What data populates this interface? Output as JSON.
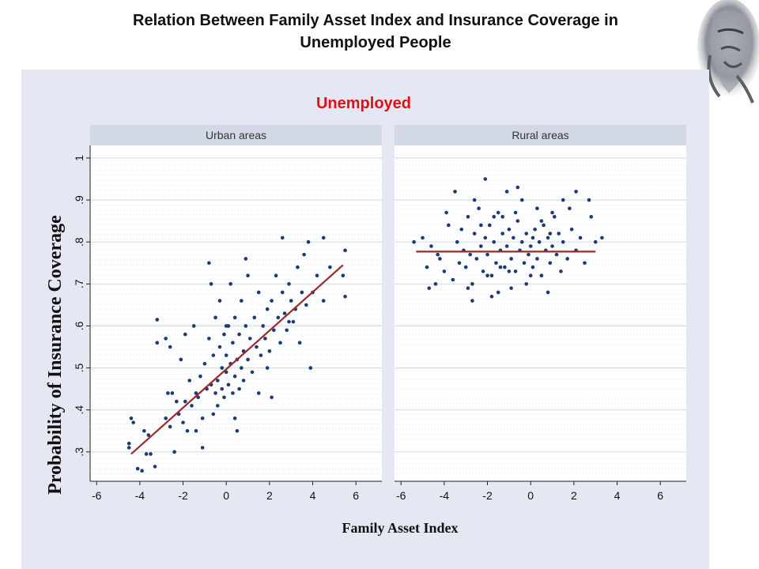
{
  "slide": {
    "title_line1": "Relation Between Family Asset Index and Insurance Coverage in",
    "title_line2": "Unemployed People"
  },
  "colors": {
    "background": "#ffffff",
    "panel_background": "#e5e8f2",
    "strip_background": "#d3d8e6",
    "plot_area": "#ffffff",
    "point": "#1f3a6e",
    "fit_line": "#9b2a2a",
    "chart_title": "#dd1111",
    "gridline": "#d6dbe8"
  },
  "icons": {
    "corner_art": "grayscale-face-illustration"
  },
  "chart_data": {
    "type": "scatter",
    "title": "Unemployed",
    "xlabel": "Family Asset Index",
    "ylabel": "Probability of Insurance Coverage",
    "xlim": [
      -6.3,
      7.2
    ],
    "ylim": [
      0.23,
      1.03
    ],
    "xticks": [
      "-6",
      "-4",
      "-2",
      "0",
      "2",
      "4",
      "6"
    ],
    "xtick_values": [
      -6,
      -4,
      -2,
      0,
      2,
      4,
      6
    ],
    "yticks": [
      ".3",
      ".4",
      ".5",
      ".6",
      ".7",
      ".8",
      ".9",
      "1"
    ],
    "ytick_values": [
      0.3,
      0.4,
      0.5,
      0.6,
      0.7,
      0.8,
      0.9,
      1.0
    ],
    "grid": true,
    "panels": [
      {
        "name": "Urban areas",
        "fit_line": {
          "x": [
            -4.4,
            5.4
          ],
          "y": [
            0.295,
            0.745
          ]
        },
        "points": [
          [
            -4.5,
            0.32
          ],
          [
            -4.5,
            0.31
          ],
          [
            -4.4,
            0.38
          ],
          [
            -4.3,
            0.37
          ],
          [
            -4.1,
            0.26
          ],
          [
            -3.9,
            0.255
          ],
          [
            -3.8,
            0.35
          ],
          [
            -3.7,
            0.295
          ],
          [
            -3.5,
            0.295
          ],
          [
            -3.3,
            0.265
          ],
          [
            -3.2,
            0.615
          ],
          [
            -3.2,
            0.56
          ],
          [
            -2.8,
            0.38
          ],
          [
            -2.7,
            0.44
          ],
          [
            -2.6,
            0.55
          ],
          [
            -2.6,
            0.36
          ],
          [
            -2.5,
            0.44
          ],
          [
            -2.4,
            0.3
          ],
          [
            -2.3,
            0.42
          ],
          [
            -2.2,
            0.39
          ],
          [
            -2.1,
            0.52
          ],
          [
            -2.0,
            0.37
          ],
          [
            -1.9,
            0.58
          ],
          [
            -1.8,
            0.35
          ],
          [
            -1.7,
            0.47
          ],
          [
            -1.6,
            0.41
          ],
          [
            -1.5,
            0.6
          ],
          [
            -1.4,
            0.44
          ],
          [
            -1.3,
            0.43
          ],
          [
            -1.2,
            0.48
          ],
          [
            -1.1,
            0.38
          ],
          [
            -1.1,
            0.31
          ],
          [
            -1.0,
            0.51
          ],
          [
            -0.9,
            0.45
          ],
          [
            -0.8,
            0.57
          ],
          [
            -0.8,
            0.75
          ],
          [
            -0.7,
            0.46
          ],
          [
            -0.6,
            0.39
          ],
          [
            -0.6,
            0.53
          ],
          [
            -0.5,
            0.44
          ],
          [
            -0.5,
            0.62
          ],
          [
            -0.4,
            0.47
          ],
          [
            -0.4,
            0.41
          ],
          [
            -0.3,
            0.55
          ],
          [
            -0.3,
            0.66
          ],
          [
            -0.2,
            0.45
          ],
          [
            -0.2,
            0.5
          ],
          [
            -0.1,
            0.58
          ],
          [
            -0.1,
            0.43
          ],
          [
            0.0,
            0.49
          ],
          [
            0.0,
            0.53
          ],
          [
            0.1,
            0.46
          ],
          [
            0.1,
            0.6
          ],
          [
            0.2,
            0.51
          ],
          [
            0.2,
            0.7
          ],
          [
            0.3,
            0.44
          ],
          [
            0.3,
            0.56
          ],
          [
            0.4,
            0.48
          ],
          [
            0.4,
            0.62
          ],
          [
            0.5,
            0.52
          ],
          [
            0.5,
            0.35
          ],
          [
            0.6,
            0.58
          ],
          [
            0.6,
            0.45
          ],
          [
            0.7,
            0.5
          ],
          [
            0.7,
            0.66
          ],
          [
            0.8,
            0.54
          ],
          [
            0.8,
            0.47
          ],
          [
            0.9,
            0.6
          ],
          [
            0.9,
            0.76
          ],
          [
            1.0,
            0.52
          ],
          [
            1.1,
            0.57
          ],
          [
            1.2,
            0.49
          ],
          [
            1.3,
            0.62
          ],
          [
            1.4,
            0.55
          ],
          [
            1.5,
            0.68
          ],
          [
            1.6,
            0.53
          ],
          [
            1.7,
            0.6
          ],
          [
            1.8,
            0.57
          ],
          [
            1.9,
            0.64
          ],
          [
            2.0,
            0.54
          ],
          [
            2.1,
            0.66
          ],
          [
            2.2,
            0.59
          ],
          [
            2.3,
            0.72
          ],
          [
            2.4,
            0.62
          ],
          [
            2.5,
            0.56
          ],
          [
            2.6,
            0.68
          ],
          [
            2.7,
            0.63
          ],
          [
            2.8,
            0.59
          ],
          [
            2.9,
            0.7
          ],
          [
            3.0,
            0.66
          ],
          [
            3.1,
            0.61
          ],
          [
            3.2,
            0.64
          ],
          [
            3.3,
            0.74
          ],
          [
            3.4,
            0.56
          ],
          [
            3.5,
            0.68
          ],
          [
            3.7,
            0.65
          ],
          [
            3.8,
            0.8
          ],
          [
            3.9,
            0.5
          ],
          [
            4.0,
            0.68
          ],
          [
            4.2,
            0.72
          ],
          [
            4.5,
            0.66
          ],
          [
            4.8,
            0.74
          ],
          [
            5.4,
            0.72
          ],
          [
            5.5,
            0.67
          ],
          [
            5.5,
            0.78
          ],
          [
            2.6,
            0.81
          ],
          [
            2.1,
            0.43
          ],
          [
            1.5,
            0.44
          ],
          [
            -1.4,
            0.35
          ],
          [
            0.4,
            0.38
          ],
          [
            -2.8,
            0.57
          ],
          [
            -3.6,
            0.34
          ],
          [
            1.0,
            0.72
          ],
          [
            3.6,
            0.77
          ],
          [
            -0.7,
            0.7
          ],
          [
            4.5,
            0.81
          ],
          [
            0.0,
            0.6
          ],
          [
            1.9,
            0.5
          ],
          [
            -1.9,
            0.42
          ],
          [
            2.9,
            0.61
          ]
        ]
      },
      {
        "name": "Rural areas",
        "fit_line": {
          "x": [
            -5.3,
            3.0
          ],
          "y": [
            0.777,
            0.777
          ]
        },
        "points": [
          [
            -5.4,
            0.8
          ],
          [
            -5.0,
            0.81
          ],
          [
            -4.8,
            0.74
          ],
          [
            -4.7,
            0.69
          ],
          [
            -4.6,
            0.79
          ],
          [
            -4.3,
            0.77
          ],
          [
            -4.2,
            0.76
          ],
          [
            -4.0,
            0.73
          ],
          [
            -3.8,
            0.84
          ],
          [
            -3.6,
            0.71
          ],
          [
            -3.4,
            0.8
          ],
          [
            -3.3,
            0.75
          ],
          [
            -3.2,
            0.83
          ],
          [
            -3.1,
            0.78
          ],
          [
            -3.0,
            0.74
          ],
          [
            -2.9,
            0.86
          ],
          [
            -2.8,
            0.77
          ],
          [
            -2.7,
            0.7
          ],
          [
            -2.6,
            0.82
          ],
          [
            -2.5,
            0.76
          ],
          [
            -2.4,
            0.88
          ],
          [
            -2.3,
            0.79
          ],
          [
            -2.2,
            0.73
          ],
          [
            -2.1,
            0.81
          ],
          [
            -2.0,
            0.77
          ],
          [
            -1.9,
            0.84
          ],
          [
            -1.8,
            0.72
          ],
          [
            -1.7,
            0.8
          ],
          [
            -1.6,
            0.75
          ],
          [
            -1.5,
            0.87
          ],
          [
            -1.4,
            0.78
          ],
          [
            -1.3,
            0.82
          ],
          [
            -1.2,
            0.74
          ],
          [
            -1.1,
            0.79
          ],
          [
            -1.0,
            0.83
          ],
          [
            -0.9,
            0.76
          ],
          [
            -0.8,
            0.81
          ],
          [
            -0.7,
            0.73
          ],
          [
            -0.6,
            0.85
          ],
          [
            -0.5,
            0.78
          ],
          [
            -0.4,
            0.8
          ],
          [
            -0.3,
            0.75
          ],
          [
            -0.2,
            0.82
          ],
          [
            -0.1,
            0.77
          ],
          [
            0.0,
            0.79
          ],
          [
            0.1,
            0.74
          ],
          [
            0.2,
            0.83
          ],
          [
            0.3,
            0.76
          ],
          [
            0.4,
            0.8
          ],
          [
            0.5,
            0.72
          ],
          [
            0.6,
            0.84
          ],
          [
            0.7,
            0.78
          ],
          [
            0.8,
            0.81
          ],
          [
            0.9,
            0.75
          ],
          [
            1.0,
            0.79
          ],
          [
            1.1,
            0.86
          ],
          [
            1.2,
            0.77
          ],
          [
            1.3,
            0.82
          ],
          [
            1.4,
            0.73
          ],
          [
            1.5,
            0.8
          ],
          [
            1.7,
            0.76
          ],
          [
            1.9,
            0.83
          ],
          [
            2.1,
            0.78
          ],
          [
            2.3,
            0.81
          ],
          [
            2.5,
            0.75
          ],
          [
            2.7,
            0.9
          ],
          [
            3.0,
            0.8
          ],
          [
            3.3,
            0.81
          ],
          [
            -2.1,
            0.95
          ],
          [
            -1.8,
            0.67
          ],
          [
            -1.1,
            0.92
          ],
          [
            -0.4,
            0.9
          ],
          [
            0.8,
            0.68
          ],
          [
            1.5,
            0.9
          ],
          [
            -2.7,
            0.66
          ],
          [
            -3.5,
            0.92
          ],
          [
            -0.9,
            0.69
          ],
          [
            0.3,
            0.88
          ],
          [
            -1.5,
            0.68
          ],
          [
            2.1,
            0.92
          ],
          [
            -4.4,
            0.7
          ],
          [
            -2.6,
            0.9
          ],
          [
            -1.3,
            0.86
          ],
          [
            0.0,
            0.72
          ],
          [
            -0.6,
            0.93
          ],
          [
            1.0,
            0.87
          ],
          [
            -2.3,
            0.84
          ],
          [
            -3.9,
            0.87
          ],
          [
            -1.7,
            0.86
          ],
          [
            0.5,
            0.85
          ],
          [
            1.8,
            0.88
          ],
          [
            -0.2,
            0.7
          ],
          [
            2.8,
            0.86
          ],
          [
            -1.0,
            0.73
          ],
          [
            0.9,
            0.82
          ],
          [
            -2.0,
            0.72
          ],
          [
            -0.7,
            0.87
          ],
          [
            -1.4,
            0.74
          ],
          [
            0.1,
            0.81
          ],
          [
            -2.9,
            0.69
          ]
        ]
      }
    ]
  }
}
